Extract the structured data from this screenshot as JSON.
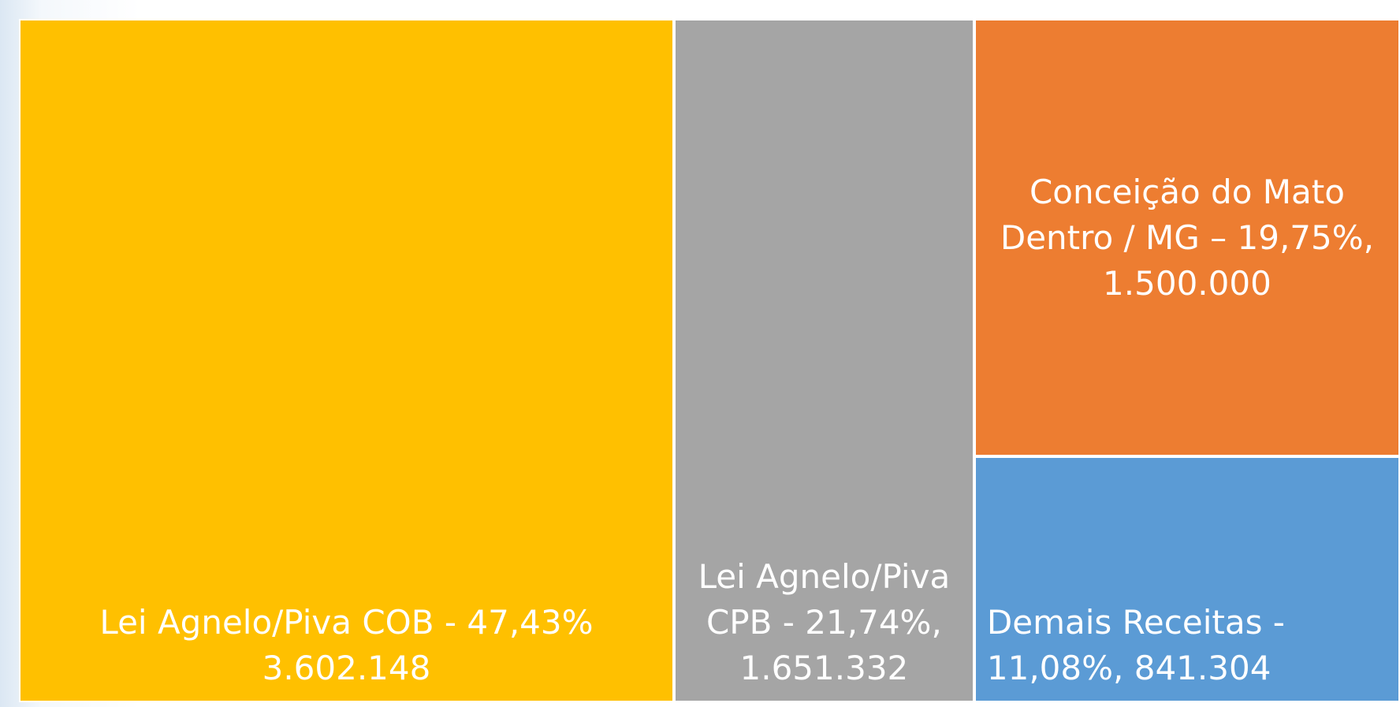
{
  "chart_data": {
    "type": "treemap",
    "categories": [
      "Lei Agnelo/Piva COB",
      "Lei Agnelo/Piva CPB",
      "Conceição do Mato Dentro / MG",
      "Demais Receitas"
    ],
    "values": [
      3602148,
      1651332,
      1500000,
      841304
    ],
    "value_labels": [
      "Lei Agnelo/Piva COB - 47,43%\n3.602.148",
      "Lei Agnelo/Piva\nCPB - 21,74%,\n1.651.332",
      "Conceição do Mato\nDentro / MG – 19,75%,\n1.500.000",
      "Demais Receitas -\n11,08%,  841.304"
    ],
    "colors": [
      "#FFC000",
      "#A5A5A5",
      "#ED7D31",
      "#5B9BD5"
    ]
  }
}
